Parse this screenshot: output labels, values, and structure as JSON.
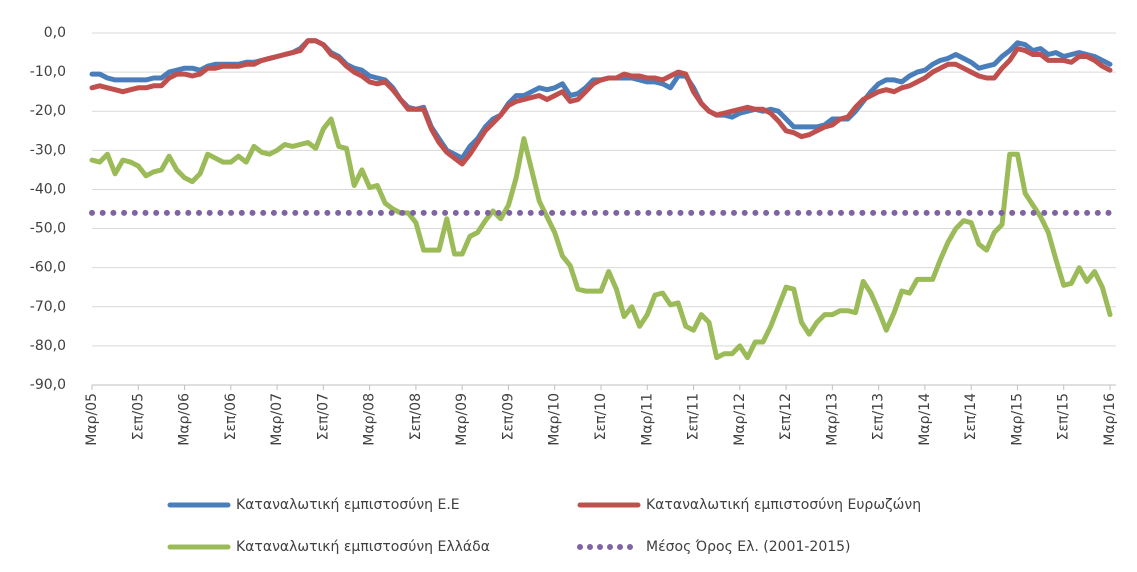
{
  "chart_data": {
    "type": "line",
    "categories": [
      "Μαρ/05",
      null,
      null,
      null,
      null,
      null,
      "Σεπ/05",
      null,
      null,
      null,
      null,
      null,
      "Μαρ/06",
      null,
      null,
      null,
      null,
      null,
      "Σεπ/06",
      null,
      null,
      null,
      null,
      null,
      "Μαρ/07",
      null,
      null,
      null,
      null,
      null,
      "Σεπ/07",
      null,
      null,
      null,
      null,
      null,
      "Μαρ/08",
      null,
      null,
      null,
      null,
      null,
      "Σεπ/08",
      null,
      null,
      null,
      null,
      null,
      "Μαρ/09",
      null,
      null,
      null,
      null,
      null,
      "Σεπ/09",
      null,
      null,
      null,
      null,
      null,
      "Μαρ/10",
      null,
      null,
      null,
      null,
      null,
      "Σεπ/10",
      null,
      null,
      null,
      null,
      null,
      "Μαρ/11",
      null,
      null,
      null,
      null,
      null,
      "Σεπ/11",
      null,
      null,
      null,
      null,
      null,
      "Μαρ/12",
      null,
      null,
      null,
      null,
      null,
      "Σεπ/12",
      null,
      null,
      null,
      null,
      null,
      "Μαρ/13",
      null,
      null,
      null,
      null,
      null,
      "Σεπ/13",
      null,
      null,
      null,
      null,
      null,
      "Μαρ/14",
      null,
      null,
      null,
      null,
      null,
      "Σεπ/14",
      null,
      null,
      null,
      null,
      null,
      "Μαρ/15",
      null,
      null,
      null,
      null,
      null,
      "Σεπ/15",
      null,
      null,
      null,
      null,
      null,
      "Μαρ/16"
    ],
    "series": [
      {
        "name": "Καταναλωτική εμπιστοσύνη Ε.Ε",
        "color": "#4a7ebb",
        "style": "solid",
        "values": [
          -10.5,
          -10.5,
          -11.5,
          -12,
          -12,
          -12,
          -12,
          -12,
          -11.5,
          -11.5,
          -10,
          -9.5,
          -9,
          -9,
          -9.5,
          -8.5,
          -8,
          -8,
          -8,
          -8,
          -7.5,
          -7.5,
          -7,
          -6.5,
          -6,
          -5.5,
          -5,
          -4,
          -2,
          -2,
          -3,
          -5,
          -6,
          -8,
          -9,
          -9.5,
          -11,
          -11.5,
          -12,
          -14,
          -17,
          -19,
          -19.5,
          -19,
          -24,
          -27,
          -30,
          -31,
          -32,
          -29,
          -27,
          -24,
          -22,
          -21,
          -18,
          -16,
          -16,
          -15,
          -14,
          -14.5,
          -14,
          -13,
          -16,
          -15.5,
          -14,
          -12,
          -12,
          -11.5,
          -11.5,
          -11.5,
          -11.5,
          -12,
          -12.5,
          -12.5,
          -13,
          -14,
          -11,
          -11,
          -14,
          -18,
          -20,
          -21,
          -21,
          -21.5,
          -20.5,
          -20,
          -19.5,
          -20,
          -19.5,
          -20,
          -22,
          -24,
          -24,
          -24,
          -24,
          -23.5,
          -22,
          -22,
          -22,
          -20,
          -17.5,
          -15,
          -13,
          -12,
          -12,
          -12.5,
          -11,
          -10,
          -9.5,
          -8,
          -7,
          -6.5,
          -5.5,
          -6.5,
          -7.5,
          -9,
          -8.5,
          -8,
          -6,
          -4.5,
          -2.5,
          -3,
          -4.5,
          -4,
          -5.5,
          -5,
          -6,
          -5.5,
          -5,
          -5.5,
          -6,
          -7,
          -8
        ]
      },
      {
        "name": "Καταναλωτική εμπιστοσύνη Ευρωζώνη",
        "color": "#c0504d",
        "style": "solid",
        "values": [
          -14,
          -13.5,
          -14,
          -14.5,
          -15,
          -14.5,
          -14,
          -14,
          -13.5,
          -13.5,
          -11.5,
          -10.5,
          -10.5,
          -11,
          -10.5,
          -9,
          -9,
          -8.5,
          -8.5,
          -8.5,
          -8,
          -8,
          -7,
          -6.5,
          -6,
          -5.5,
          -5,
          -4.5,
          -2,
          -2,
          -3,
          -5.5,
          -6.5,
          -8.5,
          -10,
          -11,
          -12.5,
          -13,
          -12.5,
          -14.5,
          -17,
          -19.5,
          -19.5,
          -19.5,
          -24.5,
          -28,
          -30.5,
          -32,
          -33.5,
          -31,
          -28,
          -25,
          -23,
          -21,
          -18.5,
          -17.5,
          -17,
          -16.5,
          -16,
          -17,
          -16,
          -15,
          -17.5,
          -17,
          -15,
          -13,
          -12,
          -11.5,
          -11.5,
          -10.5,
          -11,
          -11,
          -11.5,
          -11.5,
          -12,
          -11,
          -10,
          -10.5,
          -15,
          -18,
          -20,
          -21,
          -20.5,
          -20,
          -19.5,
          -19,
          -19.5,
          -19.5,
          -20.5,
          -22.5,
          -25,
          -25.5,
          -26.5,
          -26,
          -25,
          -24,
          -23.5,
          -22,
          -21.5,
          -19,
          -17,
          -16,
          -15,
          -14.5,
          -15,
          -14,
          -13.5,
          -12.5,
          -11.5,
          -10,
          -9,
          -8,
          -8,
          -9,
          -10,
          -11,
          -11.5,
          -11.5,
          -9,
          -7,
          -4,
          -4.5,
          -5.5,
          -5.5,
          -7,
          -7,
          -7,
          -7.5,
          -6,
          -6,
          -7,
          -8.5,
          -9.5
        ]
      },
      {
        "name": "Καταναλωτική εμπιστοσύνη Ελλάδα",
        "color": "#9bbb59",
        "style": "solid",
        "values": [
          -32.5,
          -33,
          -31,
          -36,
          -32.5,
          -33,
          -34,
          -36.5,
          -35.5,
          -35,
          -31.5,
          -35,
          -37,
          -38,
          -36,
          -31,
          -32,
          -33,
          -33,
          -31.5,
          -33,
          -29,
          -30.5,
          -31,
          -30,
          -28.5,
          -29,
          -28.5,
          -28,
          -29.5,
          -24.5,
          -22,
          -29,
          -29.5,
          -39,
          -35,
          -39.5,
          -39,
          -43.5,
          -45,
          -46,
          -46,
          -48.5,
          -55.5,
          -55.5,
          -55.5,
          -47.5,
          -56.5,
          -56.5,
          -52,
          -51,
          -48,
          -45.5,
          -47.5,
          -44,
          -37,
          -27,
          -35,
          -43,
          -47,
          -51,
          -57,
          -59.5,
          -65.5,
          -66,
          -66,
          -66,
          -61,
          -65.5,
          -72.5,
          -70,
          -75,
          -72,
          -67,
          -66.5,
          -69.5,
          -69,
          -75,
          -76,
          -72,
          -74,
          -83,
          -82,
          -82,
          -80,
          -83,
          -79,
          -79,
          -75,
          -70,
          -65,
          -65.5,
          -74,
          -77,
          -74,
          -72,
          -72,
          -71,
          -71,
          -71.5,
          -63.5,
          -66.5,
          -71,
          -76,
          -71.5,
          -66,
          -66.5,
          -63,
          -63,
          -63,
          -58,
          -53.5,
          -50,
          -48,
          -48.5,
          -54,
          -55.5,
          -51,
          -49,
          -31,
          -31,
          -41,
          -44,
          -47,
          -51,
          -58,
          -64.5,
          -64,
          -60,
          -63.5,
          -61,
          -65,
          -72
        ]
      },
      {
        "name": "Μέσος Όρος Ελ. (2001-2015)",
        "color": "#8064a2",
        "style": "dotted",
        "values": [
          -46,
          -46,
          -46,
          -46,
          -46,
          -46,
          -46,
          -46,
          -46,
          -46,
          -46,
          -46,
          -46,
          -46,
          -46,
          -46,
          -46,
          -46,
          -46,
          -46,
          -46,
          -46,
          -46,
          -46,
          -46,
          -46,
          -46,
          -46,
          -46,
          -46,
          -46,
          -46,
          -46,
          -46,
          -46,
          -46,
          -46,
          -46,
          -46,
          -46,
          -46,
          -46,
          -46,
          -46,
          -46,
          -46,
          -46,
          -46,
          -46,
          -46,
          -46,
          -46,
          -46,
          -46,
          -46,
          -46,
          -46,
          -46,
          -46,
          -46,
          -46,
          -46,
          -46,
          -46,
          -46,
          -46,
          -46,
          -46,
          -46,
          -46,
          -46,
          -46,
          -46,
          -46,
          -46,
          -46,
          -46,
          -46,
          -46,
          -46,
          -46,
          -46,
          -46,
          -46,
          -46,
          -46,
          -46,
          -46,
          -46,
          -46,
          -46,
          -46,
          -46,
          -46,
          -46,
          -46,
          -46,
          -46,
          -46,
          -46,
          -46,
          -46,
          -46,
          -46,
          -46,
          -46,
          -46,
          -46,
          -46,
          -46,
          -46,
          -46,
          -46,
          -46,
          -46,
          -46,
          -46,
          -46,
          -46,
          -46,
          -46,
          -46,
          -46,
          -46,
          -46,
          -46,
          -46,
          -46,
          -46,
          -46,
          -46,
          -46,
          -46
        ]
      }
    ],
    "ylim": [
      -90,
      0
    ],
    "yticks": [
      {
        "value": 0,
        "label": "0,0"
      },
      {
        "value": -10,
        "label": "-10,0"
      },
      {
        "value": -20,
        "label": "-20,0"
      },
      {
        "value": -30,
        "label": "-30,0"
      },
      {
        "value": -40,
        "label": "-40,0"
      },
      {
        "value": -50,
        "label": "-50,0"
      },
      {
        "value": -60,
        "label": "-60,0"
      },
      {
        "value": -70,
        "label": "-70,0"
      },
      {
        "value": -80,
        "label": "-80,0"
      },
      {
        "value": -90,
        "label": "-90,0"
      }
    ],
    "grid": true,
    "legend": "bottom"
  }
}
